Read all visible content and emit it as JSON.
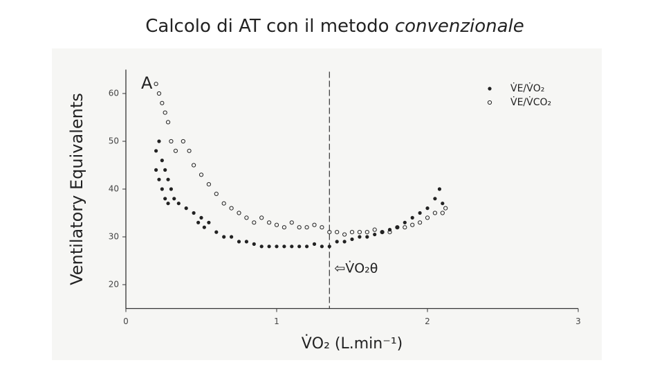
{
  "slide_title": {
    "text": "Calcolo di AT con il metodo",
    "emphasis": "convenzionale"
  },
  "chart_data": {
    "type": "scatter",
    "panel_label": "A",
    "x_label": "V̇O₂ (L.min⁻¹)",
    "y_label": "Ventilatory Equivalents",
    "annotation": "⇦V̇O₂θ",
    "threshold_x": 1.35,
    "xlim": [
      0,
      3
    ],
    "ylim": [
      15,
      65
    ],
    "xticks": [
      0,
      1,
      2,
      3
    ],
    "yticks": [
      20,
      30,
      40,
      50,
      60
    ],
    "legend": "upper right",
    "series": [
      {
        "name": "V̇E/V̇O₂",
        "color": "#222222",
        "marker": "filled",
        "x": [
          0.2,
          0.2,
          0.22,
          0.22,
          0.24,
          0.24,
          0.26,
          0.26,
          0.28,
          0.28,
          0.3,
          0.32,
          0.35,
          0.4,
          0.45,
          0.48,
          0.5,
          0.52,
          0.55,
          0.6,
          0.65,
          0.7,
          0.75,
          0.8,
          0.85,
          0.9,
          0.95,
          1.0,
          1.05,
          1.1,
          1.15,
          1.2,
          1.25,
          1.3,
          1.35,
          1.4,
          1.45,
          1.5,
          1.55,
          1.6,
          1.65,
          1.7,
          1.75,
          1.8,
          1.85,
          1.9,
          1.95,
          2.0,
          2.05,
          2.08,
          2.1
        ],
        "values": [
          48,
          44,
          50,
          42,
          46,
          40,
          44,
          38,
          42,
          37,
          40,
          38,
          37,
          36,
          35,
          33,
          34,
          32,
          33,
          31,
          30,
          30,
          29,
          29,
          28.5,
          28,
          28,
          28,
          28,
          28,
          28,
          28,
          28.5,
          28,
          28,
          29,
          29,
          29.5,
          30,
          30,
          30.5,
          31,
          31.5,
          32,
          33,
          34,
          35,
          36,
          38,
          40,
          37
        ]
      },
      {
        "name": "V̇E/V̇CO₂",
        "color": "#222222",
        "marker": "open",
        "x": [
          0.2,
          0.22,
          0.24,
          0.26,
          0.28,
          0.3,
          0.33,
          0.38,
          0.42,
          0.45,
          0.5,
          0.55,
          0.6,
          0.65,
          0.7,
          0.75,
          0.8,
          0.85,
          0.9,
          0.95,
          1.0,
          1.05,
          1.1,
          1.15,
          1.2,
          1.25,
          1.3,
          1.35,
          1.4,
          1.45,
          1.5,
          1.55,
          1.6,
          1.65,
          1.7,
          1.75,
          1.8,
          1.85,
          1.9,
          1.95,
          2.0,
          2.05,
          2.1,
          2.12
        ],
        "values": [
          62,
          60,
          58,
          56,
          54,
          50,
          48,
          50,
          48,
          45,
          43,
          41,
          39,
          37,
          36,
          35,
          34,
          33,
          34,
          33,
          32.5,
          32,
          33,
          32,
          32,
          32.5,
          32,
          31,
          31,
          30.5,
          31,
          31,
          31,
          31.5,
          31,
          31,
          32,
          32,
          32.5,
          33,
          34,
          35,
          35,
          36
        ]
      }
    ]
  }
}
